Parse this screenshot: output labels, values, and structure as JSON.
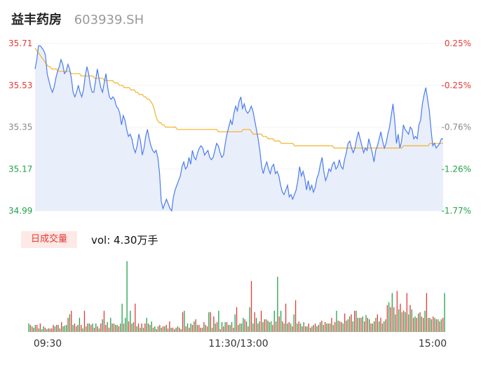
{
  "header": {
    "name": "益丰药房",
    "code": "603939.SH"
  },
  "volume_panel": {
    "tag": "日成交量",
    "vol_text": "vol: 4.30万手"
  },
  "colors": {
    "price": "#4a7cf0",
    "avg": "#f2b229",
    "up": "#e53935",
    "down": "#22a14b",
    "flat": "#888888",
    "area": "#e9eefb"
  },
  "chart_data": [
    {
      "type": "line",
      "title": "",
      "ylim": [
        34.99,
        35.71
      ],
      "y_ticks": [
        "35.71",
        "35.53",
        "35.35",
        "35.17",
        "34.99"
      ],
      "y_tick_colors": [
        "#e53935",
        "#e53935",
        "#888888",
        "#22a14b",
        "#22a14b"
      ],
      "pct_ticks": [
        "0.25%",
        "-0.25%",
        "-0.76%",
        "-1.26%",
        "-1.77%"
      ],
      "pct_tick_colors": [
        "#e53935",
        "#e53935",
        "#888888",
        "#22a14b",
        "#22a14b"
      ],
      "x_ticks": [
        "09:30",
        "11:30/13:00",
        "15:00"
      ],
      "series": [
        {
          "values": [
            35.6,
            35.64,
            35.7,
            35.7,
            35.69,
            35.68,
            35.66,
            35.58,
            35.55,
            35.52,
            35.5,
            35.52,
            35.56,
            35.59,
            35.61,
            35.64,
            35.62,
            35.58,
            35.59,
            35.62,
            35.6,
            35.56,
            35.5,
            35.48,
            35.5,
            35.53,
            35.5,
            35.48,
            35.51,
            35.57,
            35.61,
            35.58,
            35.53,
            35.5,
            35.5,
            35.55,
            35.6,
            35.56,
            35.52,
            35.5,
            35.54,
            35.58,
            35.52,
            35.48,
            35.47,
            35.48,
            35.47,
            35.44,
            35.43,
            35.41,
            35.36,
            35.4,
            35.38,
            35.34,
            35.31,
            35.32,
            35.3,
            35.26,
            35.24,
            35.27,
            35.32,
            35.29,
            35.23,
            35.26,
            35.31,
            35.34,
            35.3,
            35.27,
            35.25,
            35.24,
            35.25,
            35.22,
            35.15,
            35.03,
            35.0,
            35.02,
            35.04,
            35.02,
            35.0,
            34.99,
            35.05,
            35.08,
            35.1,
            35.12,
            35.14,
            35.18,
            35.2,
            35.17,
            35.18,
            35.22,
            35.19,
            35.25,
            35.22,
            35.21,
            35.24,
            35.26,
            35.27,
            35.26,
            35.23,
            35.24,
            35.25,
            35.22,
            35.21,
            35.22,
            35.25,
            35.28,
            35.27,
            35.24,
            35.22,
            35.23,
            35.28,
            35.32,
            35.35,
            35.38,
            35.36,
            35.41,
            35.44,
            35.42,
            35.46,
            35.48,
            35.43,
            35.45,
            35.42,
            35.41,
            35.42,
            35.44,
            35.42,
            35.38,
            35.34,
            35.3,
            35.25,
            35.18,
            35.15,
            35.18,
            35.2,
            35.17,
            35.15,
            35.18,
            35.19,
            35.15,
            35.16,
            35.14,
            35.1,
            35.07,
            35.06,
            35.08,
            35.1,
            35.05,
            35.06,
            35.04,
            35.06,
            35.08,
            35.12,
            35.18,
            35.14,
            35.16,
            35.13,
            35.08,
            35.12,
            35.08,
            35.1,
            35.07,
            35.09,
            35.13,
            35.15,
            35.19,
            35.22,
            35.16,
            35.12,
            35.14,
            35.17,
            35.16,
            35.19,
            35.2,
            35.17,
            35.18,
            35.21,
            35.18,
            35.17,
            35.21,
            35.24,
            35.28,
            35.29,
            35.26,
            35.24,
            35.26,
            35.3,
            35.33,
            35.3,
            35.27,
            35.24,
            35.26,
            35.25,
            35.3,
            35.27,
            35.24,
            35.2,
            35.25,
            35.27,
            35.3,
            35.33,
            35.29,
            35.26,
            35.28,
            35.32,
            35.35,
            35.4,
            35.45,
            35.38,
            35.28,
            35.32,
            35.26,
            35.29,
            35.36,
            35.34,
            35.33,
            35.32,
            35.35,
            35.34,
            35.3,
            35.31,
            35.3,
            35.36,
            35.38,
            35.45,
            35.49,
            35.52,
            35.47,
            35.42,
            35.34,
            35.27,
            35.28,
            35.26,
            35.27,
            35.28,
            35.3,
            35.3
          ],
          "color": "#4a7cf0"
        },
        {
          "values": [
            35.69,
            35.68,
            35.67,
            35.66,
            35.65,
            35.64,
            35.63,
            35.62,
            35.61,
            35.61,
            35.6,
            35.6,
            35.6,
            35.6,
            35.59,
            35.59,
            35.59,
            35.59,
            35.59,
            35.59,
            35.59,
            35.59,
            35.58,
            35.58,
            35.58,
            35.58,
            35.58,
            35.58,
            35.57,
            35.57,
            35.57,
            35.57,
            35.57,
            35.57,
            35.57,
            35.57,
            35.56,
            35.56,
            35.56,
            35.56,
            35.56,
            35.56,
            35.55,
            35.55,
            35.55,
            35.55,
            35.55,
            35.55,
            35.54,
            35.54,
            35.54,
            35.53,
            35.53,
            35.53,
            35.52,
            35.52,
            35.52,
            35.52,
            35.51,
            35.51,
            35.51,
            35.5,
            35.5,
            35.49,
            35.49,
            35.49,
            35.48,
            35.48,
            35.47,
            35.47,
            35.46,
            35.45,
            35.43,
            35.4,
            35.38,
            35.37,
            35.37,
            35.36,
            35.36,
            35.35,
            35.35,
            35.35,
            35.35,
            35.35,
            35.35,
            35.35,
            35.34,
            35.34,
            35.34,
            35.34,
            35.34,
            35.34,
            35.34,
            35.34,
            35.34,
            35.34,
            35.34,
            35.34,
            35.34,
            35.34,
            35.34,
            35.34,
            35.34,
            35.34,
            35.34,
            35.34,
            35.34,
            35.34,
            35.34,
            35.34,
            35.34,
            35.33,
            35.33,
            35.33,
            35.33,
            35.33,
            35.33,
            35.33,
            35.33,
            35.33,
            35.33,
            35.33,
            35.33,
            35.33,
            35.33,
            35.33,
            35.34,
            35.34,
            35.34,
            35.34,
            35.34,
            35.33,
            35.32,
            35.32,
            35.32,
            35.32,
            35.32,
            35.32,
            35.31,
            35.31,
            35.31,
            35.3,
            35.3,
            35.3,
            35.3,
            35.29,
            35.29,
            35.29,
            35.29,
            35.28,
            35.28,
            35.28,
            35.28,
            35.28,
            35.28,
            35.28,
            35.28,
            35.27,
            35.27,
            35.27,
            35.27,
            35.27,
            35.27,
            35.27,
            35.27,
            35.27,
            35.27,
            35.27,
            35.27,
            35.27,
            35.27,
            35.27,
            35.27,
            35.27,
            35.27,
            35.27,
            35.27,
            35.27,
            35.27,
            35.27,
            35.27,
            35.26,
            35.26,
            35.26,
            35.26,
            35.26,
            35.26,
            35.26,
            35.26,
            35.26,
            35.26,
            35.26,
            35.26,
            35.26,
            35.26,
            35.26,
            35.26,
            35.26,
            35.26,
            35.26,
            35.26,
            35.26,
            35.26,
            35.26,
            35.26,
            35.26,
            35.26,
            35.26,
            35.26,
            35.26,
            35.26,
            35.26,
            35.26,
            35.26,
            35.26,
            35.26,
            35.26,
            35.26,
            35.26,
            35.26,
            35.26,
            35.26,
            35.26,
            35.27,
            35.27,
            35.27,
            35.27,
            35.27,
            35.27,
            35.27,
            35.27,
            35.27,
            35.27,
            35.27,
            35.27,
            35.27,
            35.27,
            35.27,
            35.27,
            35.28,
            35.28,
            35.28,
            35.28,
            35.28,
            35.28,
            35.28,
            35.28,
            35.28
          ],
          "color": "#f2b229"
        }
      ]
    },
    {
      "type": "bar",
      "title": "",
      "ylim": [
        0,
        100
      ],
      "values": [
        12,
        10,
        8,
        6,
        10,
        10,
        5,
        12,
        4,
        8,
        6,
        4,
        5,
        5,
        5,
        10,
        8,
        10,
        10,
        5,
        14,
        8,
        9,
        10,
        20,
        25,
        30,
        10,
        12,
        8,
        10,
        20,
        10,
        5,
        30,
        8,
        12,
        12,
        10,
        12,
        6,
        12,
        8,
        5,
        12,
        18,
        30,
        10,
        14,
        6,
        20,
        12,
        12,
        10,
        10,
        8,
        12,
        40,
        12,
        20,
        100,
        15,
        30,
        12,
        14,
        40,
        8,
        12,
        6,
        12,
        6,
        12,
        20,
        12,
        10,
        15,
        6,
        8,
        4,
        8,
        10,
        6,
        8,
        8,
        10,
        5,
        15,
        6,
        6,
        4,
        6,
        8,
        6,
        4,
        28,
        30,
        8,
        12,
        6,
        12,
        10,
        15,
        18,
        10,
        10,
        6,
        6,
        14,
        10,
        8,
        28,
        28,
        6,
        22,
        12,
        14,
        30,
        4,
        14,
        8,
        14,
        14,
        10,
        10,
        14,
        6,
        25,
        35,
        10,
        12,
        12,
        20,
        18,
        15,
        8,
        35,
        72,
        12,
        28,
        20,
        12,
        15,
        30,
        14,
        18,
        18,
        16,
        14,
        15,
        10,
        30,
        15,
        78,
        22,
        30,
        15,
        12,
        40,
        12,
        14,
        12,
        8,
        25,
        45,
        12,
        15,
        12,
        8,
        14,
        8,
        8,
        12,
        6,
        8,
        10,
        12,
        8,
        10,
        14,
        16,
        10,
        14,
        12,
        12,
        12,
        20,
        10,
        14,
        30,
        16,
        15,
        14,
        12,
        26,
        16,
        18,
        22,
        25,
        15,
        30,
        30,
        20,
        20,
        20,
        22,
        15,
        24,
        20,
        18,
        12,
        12,
        15,
        20,
        25,
        15,
        20,
        12,
        15,
        18,
        38,
        42,
        35,
        55,
        35,
        25,
        58,
        32,
        40,
        28,
        30,
        28,
        55,
        25,
        38,
        32,
        20,
        22,
        20,
        26,
        28,
        22,
        20,
        30,
        55,
        20,
        20,
        18,
        22,
        20,
        18,
        18,
        15,
        18,
        20,
        55
      ],
      "colors": [
        "d",
        "u",
        "d",
        "u",
        "d",
        "u",
        "d",
        "u",
        "d",
        "d",
        "u",
        "d",
        "u",
        "d",
        "u",
        "u",
        "d",
        "u",
        "d",
        "u",
        "u",
        "d",
        "d",
        "d",
        "u",
        "d",
        "u",
        "d",
        "u",
        "d",
        "u",
        "d",
        "u",
        "d",
        "u",
        "d",
        "u",
        "d",
        "u",
        "d",
        "u",
        "d",
        "u",
        "d",
        "u",
        "d",
        "u",
        "u",
        "d",
        "u",
        "d",
        "u",
        "d",
        "u",
        "d",
        "u",
        "d",
        "d",
        "u",
        "d",
        "d",
        "u",
        "d",
        "u",
        "d",
        "u",
        "d",
        "u",
        "d",
        "u",
        "d",
        "u",
        "d",
        "u",
        "d",
        "d",
        "u",
        "d",
        "u",
        "d",
        "u",
        "d",
        "u",
        "d",
        "u",
        "d",
        "u",
        "d",
        "u",
        "d",
        "u",
        "d",
        "u",
        "d",
        "u",
        "d",
        "u",
        "d",
        "u",
        "d",
        "u",
        "d",
        "u",
        "d",
        "u",
        "u",
        "d",
        "u",
        "d",
        "u",
        "d",
        "u",
        "d",
        "u",
        "d",
        "u",
        "d",
        "u",
        "d",
        "u",
        "d",
        "u",
        "d",
        "u",
        "d",
        "u",
        "d",
        "u",
        "d",
        "u",
        "d",
        "d",
        "u",
        "d",
        "u",
        "d",
        "u",
        "d",
        "u",
        "d",
        "u",
        "d",
        "u",
        "d",
        "u",
        "d",
        "u",
        "d",
        "d",
        "u",
        "d",
        "u",
        "d",
        "u",
        "d",
        "u",
        "d",
        "u",
        "d",
        "u",
        "d",
        "u",
        "d",
        "u",
        "d",
        "u",
        "d",
        "u",
        "d",
        "u",
        "d",
        "u",
        "d",
        "u",
        "d",
        "u",
        "d",
        "u",
        "d",
        "u",
        "d",
        "u",
        "d",
        "u",
        "d",
        "u",
        "d",
        "u",
        "d",
        "u",
        "d",
        "u",
        "d",
        "u",
        "d",
        "u",
        "d",
        "u",
        "d",
        "u",
        "d",
        "u",
        "d",
        "u",
        "d",
        "u",
        "d",
        "u",
        "d",
        "u",
        "d",
        "u",
        "d",
        "u",
        "d",
        "u",
        "d",
        "u",
        "d",
        "u",
        "d",
        "u",
        "d",
        "u",
        "d",
        "u",
        "d",
        "u",
        "d",
        "u",
        "d",
        "u",
        "d",
        "u",
        "d",
        "u",
        "d",
        "u",
        "d",
        "u",
        "d",
        "u",
        "d",
        "u",
        "d",
        "u",
        "d",
        "u",
        "d",
        "u",
        "d",
        "u",
        "d",
        "u",
        "d",
        "f"
      ]
    }
  ]
}
